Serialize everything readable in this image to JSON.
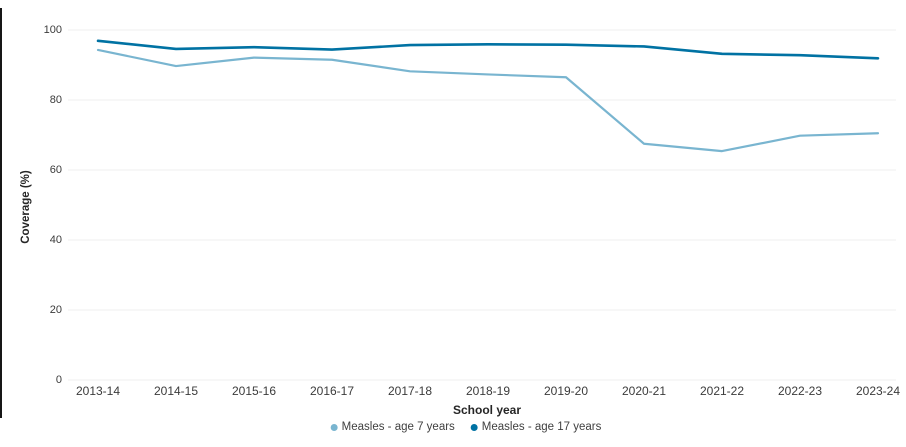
{
  "page": {
    "background_color": "#ffffff",
    "left_border_color": "#161616"
  },
  "chart": {
    "y_axis_label": "Coverage (%)",
    "x_axis_label": "School year",
    "y_ticks": [
      0,
      20,
      40,
      60,
      80,
      100
    ],
    "grid_color": "#efefef",
    "axis_text_color": "#3b3b3b"
  },
  "chart_data": {
    "type": "line",
    "title": "",
    "xlabel": "School year",
    "ylabel": "Coverage (%)",
    "ylim": [
      0,
      100
    ],
    "grid": true,
    "legend_position": "bottom",
    "categories": [
      "2013-14",
      "2014-15",
      "2015-16",
      "2016-17",
      "2017-18",
      "2018-19",
      "2019-20",
      "2020-21",
      "2021-22",
      "2022-23",
      "2023-24"
    ],
    "series": [
      {
        "name": "Measles - age 7 years",
        "id": "age7",
        "color": "#79b5d0",
        "values": [
          94.3,
          89.7,
          92.1,
          91.5,
          88.2,
          87.3,
          86.5,
          67.5,
          65.4,
          69.8,
          70.5
        ]
      },
      {
        "name": "Measles - age 17 years",
        "id": "age17",
        "color": "#0072a3",
        "values": [
          96.9,
          94.6,
          95.1,
          94.4,
          95.7,
          95.9,
          95.8,
          95.3,
          93.2,
          92.8,
          91.9
        ]
      }
    ]
  }
}
